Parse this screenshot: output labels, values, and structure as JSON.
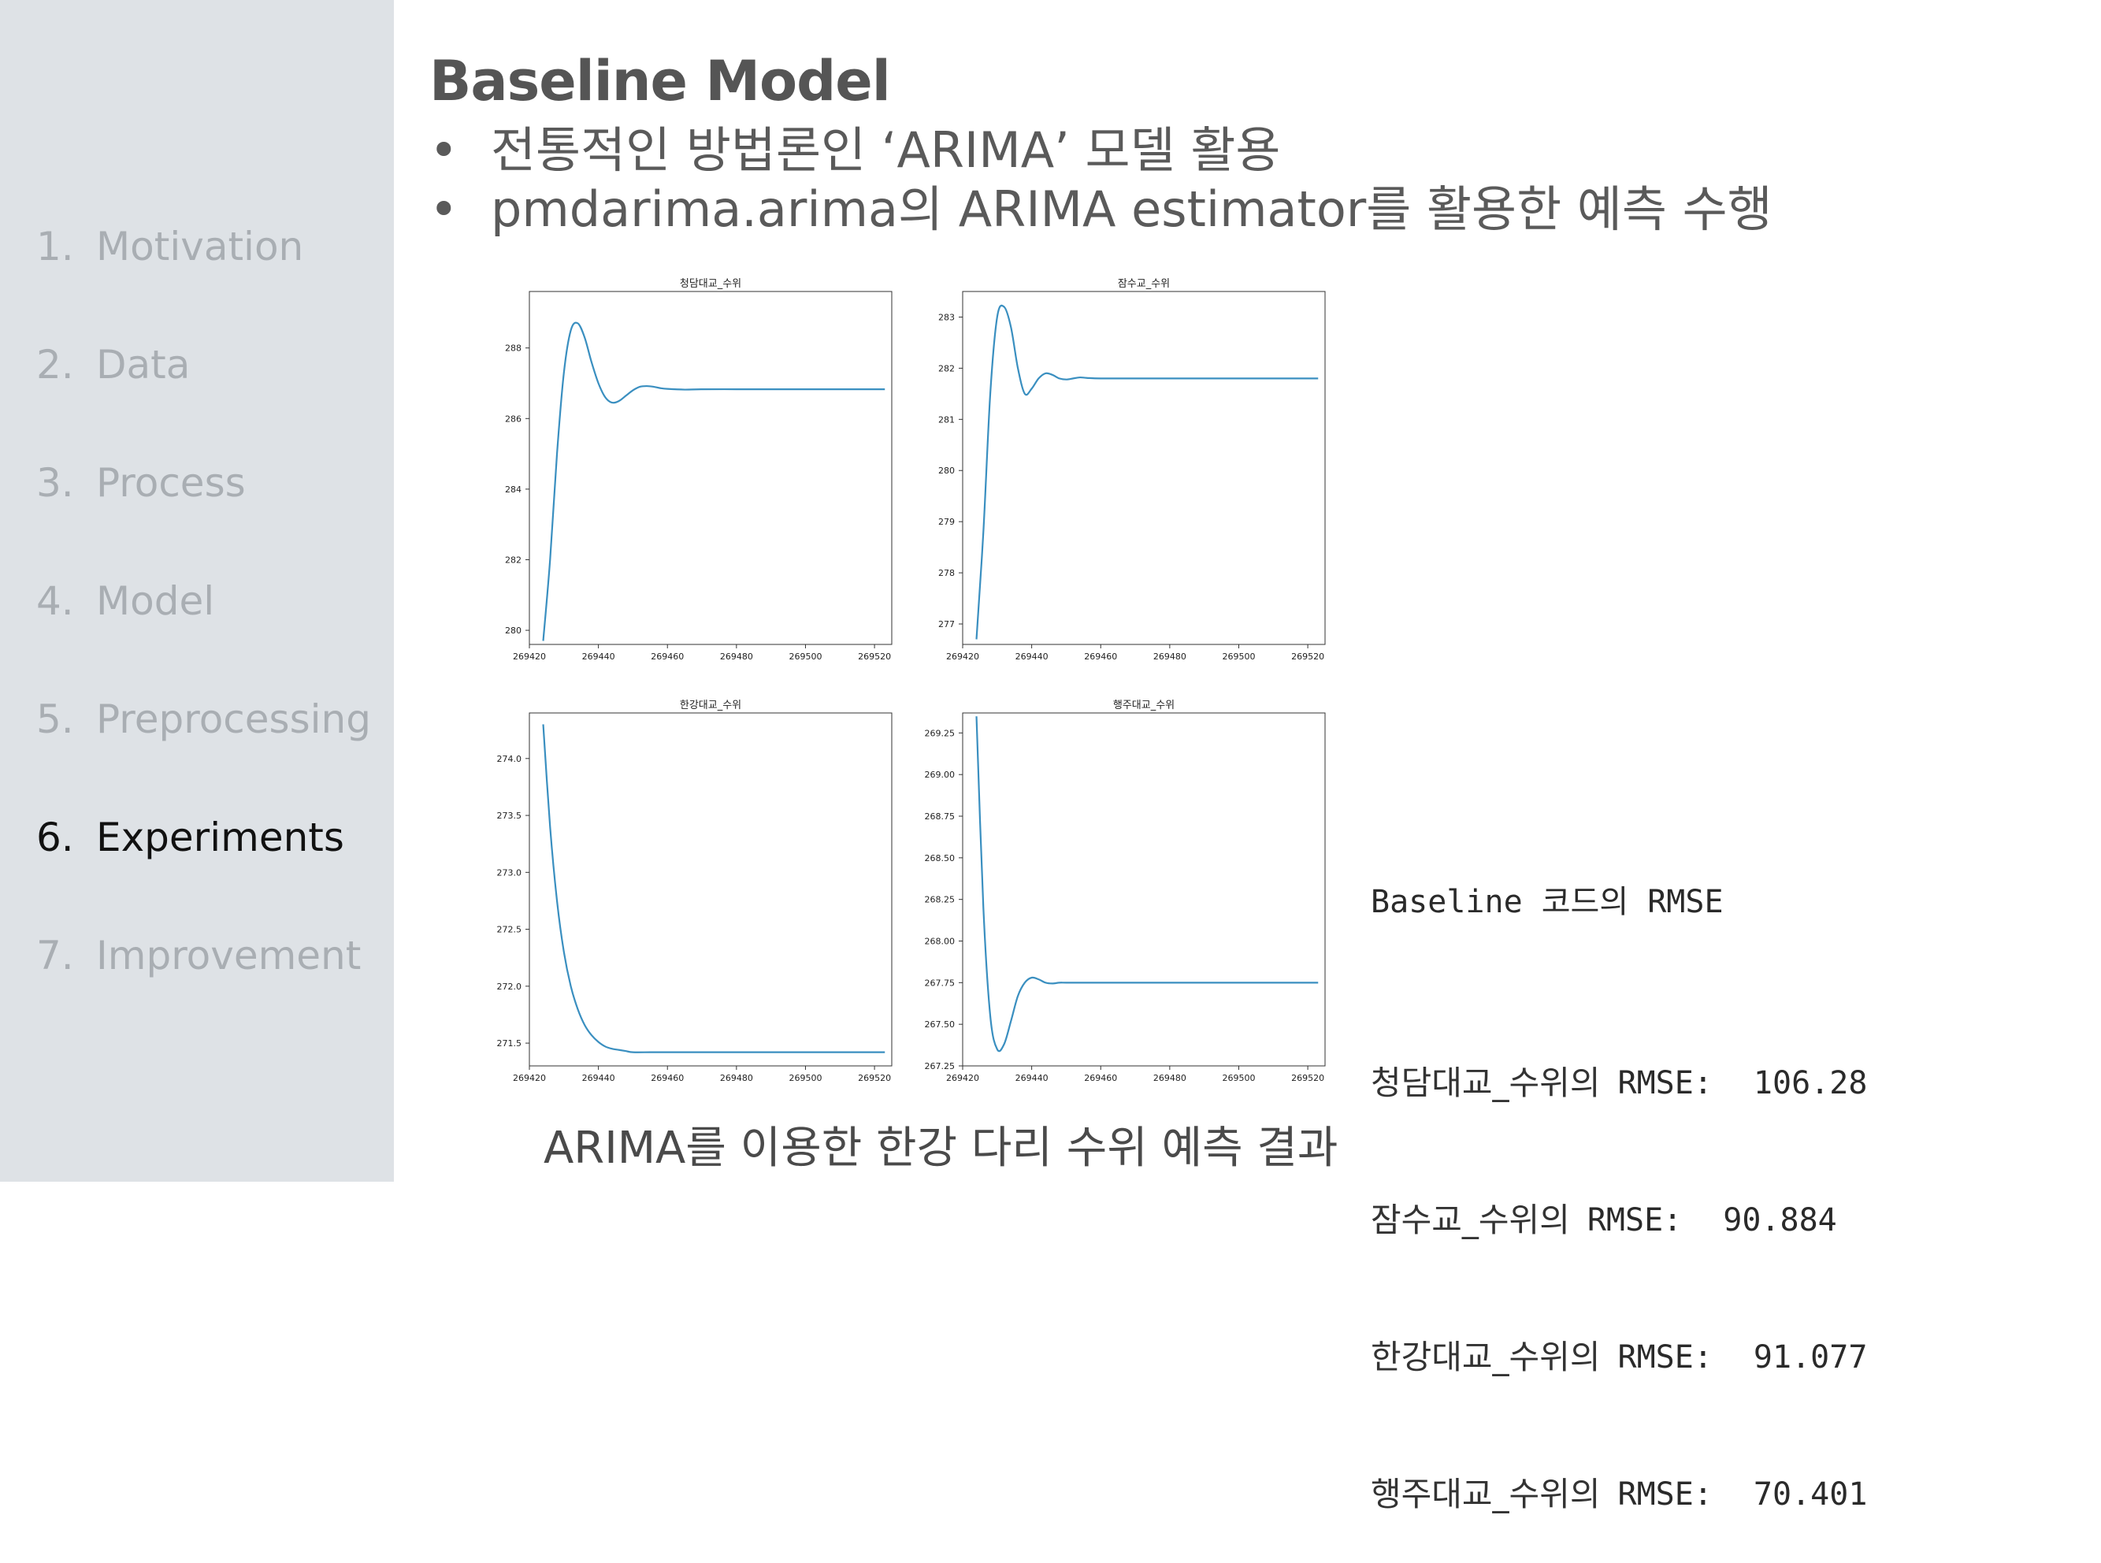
{
  "sidebar": {
    "items": [
      {
        "num": "1.",
        "label": "Motivation",
        "active": false
      },
      {
        "num": "2.",
        "label": "Data",
        "active": false
      },
      {
        "num": "3.",
        "label": "Process",
        "active": false
      },
      {
        "num": "4.",
        "label": "Model",
        "active": false
      },
      {
        "num": "5.",
        "label": "Preprocessing",
        "active": false
      },
      {
        "num": "6.",
        "label": "Experiments",
        "active": true
      },
      {
        "num": "7.",
        "label": "Improvement",
        "active": false
      }
    ]
  },
  "slide": {
    "title": "Baseline Model",
    "bullets": [
      "전통적인 방법론인 ‘ARIMA’ 모델 활용",
      "pmdarima.arima의 ARIMA estimator를 활용한 예측 수행"
    ],
    "bullet_glyph": "•",
    "caption": "ARIMA를 이용한 한강 다리 수위 예측 결과"
  },
  "rmse_panel": {
    "header": "Baseline 코드의 RMSE",
    "rows": [
      {
        "site": "청담대교_수위의",
        "metric": "RMSE:",
        "value": "106.28"
      },
      {
        "site": "잠수교_수위의",
        "metric": "RMSE:",
        "value": "90.884"
      },
      {
        "site": "한강대교_수위의",
        "metric": "RMSE:",
        "value": "91.077"
      },
      {
        "site": "행주대교_수위의",
        "metric": "RMSE:",
        "value": "70.401"
      }
    ]
  },
  "colors": {
    "line": "#3a8fc0",
    "sidebar_bg": "#dee2e6",
    "nav_inactive": "#a9aeb3",
    "nav_active": "#111111"
  },
  "chart_data": [
    {
      "type": "line",
      "title": "청담대교_수위",
      "xlim": [
        269420,
        269525
      ],
      "xticks": [
        "269420",
        "269440",
        "269460",
        "269480",
        "269500",
        "269520"
      ],
      "ylim": [
        279.6,
        289.6
      ],
      "yticks": [
        "280",
        "282",
        "284",
        "286",
        "288"
      ],
      "x": [
        269424,
        269426,
        269428,
        269430,
        269432,
        269434,
        269436,
        269438,
        269440,
        269442,
        269444,
        269446,
        269448,
        269450,
        269452,
        269454,
        269456,
        269458,
        269460,
        269465,
        269470,
        269480,
        269490,
        269500,
        269510,
        269520,
        269523
      ],
      "y": [
        279.7,
        282.0,
        285.0,
        287.3,
        288.5,
        288.7,
        288.3,
        287.6,
        287.0,
        286.6,
        286.45,
        286.5,
        286.65,
        286.8,
        286.9,
        286.92,
        286.9,
        286.86,
        286.84,
        286.82,
        286.83,
        286.83,
        286.83,
        286.83,
        286.83,
        286.83,
        286.83
      ]
    },
    {
      "type": "line",
      "title": "잠수교_수위",
      "xlim": [
        269420,
        269525
      ],
      "xticks": [
        "269420",
        "269440",
        "269460",
        "269480",
        "269500",
        "269520"
      ],
      "ylim": [
        276.6,
        283.5
      ],
      "yticks": [
        "277",
        "278",
        "279",
        "280",
        "281",
        "282",
        "283"
      ],
      "x": [
        269424,
        269426,
        269428,
        269430,
        269432,
        269434,
        269436,
        269438,
        269440,
        269442,
        269444,
        269446,
        269448,
        269450,
        269452,
        269454,
        269456,
        269460,
        269470,
        269480,
        269490,
        269500,
        269510,
        269520,
        269523
      ],
      "y": [
        276.7,
        278.8,
        281.5,
        283.0,
        283.2,
        282.8,
        282.0,
        281.5,
        281.6,
        281.8,
        281.9,
        281.87,
        281.8,
        281.78,
        281.8,
        281.82,
        281.81,
        281.8,
        281.8,
        281.8,
        281.8,
        281.8,
        281.8,
        281.8,
        281.8
      ]
    },
    {
      "type": "line",
      "title": "한강대교_수위",
      "xlim": [
        269420,
        269525
      ],
      "xticks": [
        "269420",
        "269440",
        "269460",
        "269480",
        "269500",
        "269520"
      ],
      "ylim": [
        271.3,
        274.4
      ],
      "yticks": [
        "271.5",
        "272.0",
        "272.5",
        "273.0",
        "273.5",
        "274.0"
      ],
      "x": [
        269424,
        269426,
        269428,
        269430,
        269432,
        269434,
        269436,
        269438,
        269440,
        269442,
        269444,
        269446,
        269448,
        269450,
        269455,
        269460,
        269470,
        269480,
        269490,
        269500,
        269510,
        269520,
        269523
      ],
      "y": [
        274.3,
        273.4,
        272.75,
        272.3,
        272.0,
        271.8,
        271.66,
        271.57,
        271.51,
        271.47,
        271.45,
        271.44,
        271.43,
        271.42,
        271.42,
        271.42,
        271.42,
        271.42,
        271.42,
        271.42,
        271.42,
        271.42,
        271.42
      ]
    },
    {
      "type": "line",
      "title": "행주대교_수위",
      "xlim": [
        269420,
        269525
      ],
      "xticks": [
        "269420",
        "269440",
        "269460",
        "269480",
        "269500",
        "269520"
      ],
      "ylim": [
        267.25,
        269.37
      ],
      "yticks": [
        "267.25",
        "267.50",
        "267.75",
        "268.00",
        "268.25",
        "268.50",
        "268.75",
        "269.00",
        "269.25"
      ],
      "x": [
        269424,
        269426,
        269428,
        269430,
        269432,
        269434,
        269436,
        269438,
        269440,
        269442,
        269444,
        269446,
        269448,
        269450,
        269455,
        269460,
        269470,
        269480,
        269490,
        269500,
        269510,
        269520,
        269523
      ],
      "y": [
        269.35,
        268.2,
        267.55,
        267.35,
        267.38,
        267.52,
        267.67,
        267.75,
        267.78,
        267.77,
        267.75,
        267.745,
        267.75,
        267.75,
        267.75,
        267.75,
        267.75,
        267.75,
        267.75,
        267.75,
        267.75,
        267.75,
        267.75
      ]
    }
  ]
}
